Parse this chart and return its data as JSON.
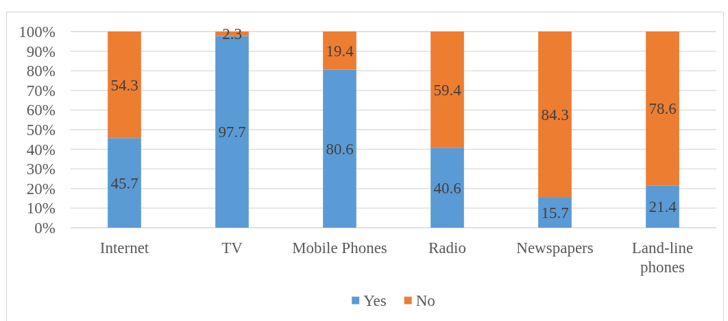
{
  "chart_data": {
    "type": "bar",
    "stacked": true,
    "categories": [
      "Internet",
      "TV",
      "Mobile Phones",
      "Radio",
      "Newspapers",
      "Land-line phones"
    ],
    "series": [
      {
        "name": "Yes",
        "color": "#5b9bd5",
        "values": [
          45.7,
          97.7,
          80.6,
          40.6,
          15.7,
          21.4
        ]
      },
      {
        "name": "No",
        "color": "#ed7d31",
        "values": [
          54.3,
          2.3,
          19.4,
          59.4,
          84.3,
          78.6
        ]
      }
    ],
    "ylim": [
      0,
      100
    ],
    "yticks": [
      {
        "value": 0,
        "label": "0%"
      },
      {
        "value": 10,
        "label": "10%"
      },
      {
        "value": 20,
        "label": "20%"
      },
      {
        "value": 30,
        "label": "30%"
      },
      {
        "value": 40,
        "label": "40%"
      },
      {
        "value": 50,
        "label": "50%"
      },
      {
        "value": 60,
        "label": "60%"
      },
      {
        "value": 70,
        "label": "70%"
      },
      {
        "value": 80,
        "label": "80%"
      },
      {
        "value": 90,
        "label": "90%"
      },
      {
        "value": 100,
        "label": "100%"
      }
    ],
    "grid": "y",
    "legend": "bottom",
    "data_labels": true
  }
}
